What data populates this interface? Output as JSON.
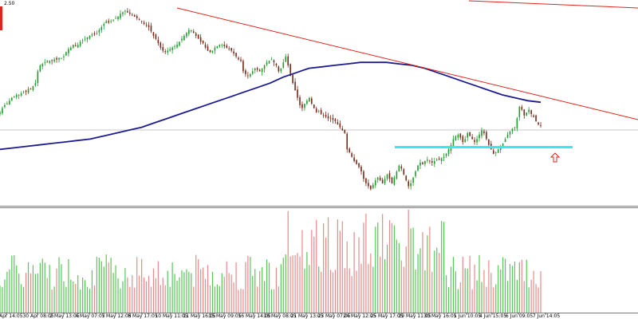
{
  "price_label": "2.50",
  "colors": {
    "bull": "#1f9e2f",
    "bear": "#7a2a1a",
    "ma": "#1c1c8f",
    "trendline": "#e0241c",
    "support": "#38e8f0",
    "arrow": "#e0241c",
    "vol_up": "#56c856",
    "vol_down": "#e88a8a",
    "marker": "#e0241c",
    "grid": "#b8b8b8",
    "separator": "#7a7a7a"
  },
  "x_ticks": [
    "26 Apr 14:05",
    "30 Apr 08:05",
    "2 May 13:05",
    "4 May 07:05",
    "7 May 12:05",
    "8 May 17:05",
    "10 May 11:05",
    "11 May 16:05",
    "15 May 09:05",
    "16 May 14:05",
    "18 May 08:05",
    "21 May 13:05",
    "23 May 07:05",
    "24 May 12:05",
    "25 May 17:05",
    "29 May 11:05",
    "30 May 16:05",
    "1 Jun 10:05",
    "4 Jun 15:05",
    "6 Jun 09:05",
    "7 Jun 14:05"
  ],
  "chart_data": {
    "type": "candlestick",
    "indicators": [
      "moving average",
      "descending trendline",
      "horizontal support line",
      "volume histogram"
    ],
    "closes": [
      0.3,
      0.33,
      0.35,
      0.36,
      0.38,
      0.4,
      0.41,
      0.42,
      0.42,
      0.43,
      0.44,
      0.44,
      0.46,
      0.46,
      0.48,
      0.5,
      0.58,
      0.62,
      0.63,
      0.64,
      0.64,
      0.65,
      0.65,
      0.66,
      0.66,
      0.67,
      0.67,
      0.68,
      0.71,
      0.73,
      0.74,
      0.76,
      0.75,
      0.76,
      0.78,
      0.79,
      0.8,
      0.81,
      0.82,
      0.83,
      0.83,
      0.84,
      0.86,
      0.88,
      0.9,
      0.92,
      0.91,
      0.92,
      0.93,
      0.94,
      0.95,
      0.97,
      0.98,
      0.99,
      0.98,
      0.97,
      0.96,
      0.95,
      0.94,
      0.93,
      0.92,
      0.9,
      0.89,
      0.88,
      0.85,
      0.82,
      0.8,
      0.77,
      0.74,
      0.72,
      0.71,
      0.72,
      0.73,
      0.74,
      0.75,
      0.76,
      0.78,
      0.8,
      0.82,
      0.84,
      0.86,
      0.86,
      0.84,
      0.82,
      0.8,
      0.78,
      0.77,
      0.74,
      0.72,
      0.71,
      0.72,
      0.74,
      0.75,
      0.76,
      0.76,
      0.75,
      0.74,
      0.73,
      0.72,
      0.7,
      0.68,
      0.66,
      0.65,
      0.58,
      0.56,
      0.55,
      0.56,
      0.58,
      0.6,
      0.59,
      0.58,
      0.6,
      0.62,
      0.64,
      0.65,
      0.66,
      0.64,
      0.62,
      0.58,
      0.6,
      0.64,
      0.68,
      0.62,
      0.55,
      0.5,
      0.45,
      0.4,
      0.35,
      0.33,
      0.36,
      0.38,
      0.4,
      0.36,
      0.33,
      0.3,
      0.31,
      0.29,
      0.28,
      0.27,
      0.26,
      0.26,
      0.25,
      0.24,
      0.22,
      0.2,
      0.18,
      0.16,
      0.05,
      0.03,
      0.0,
      -0.03,
      -0.05,
      -0.07,
      -0.1,
      -0.15,
      -0.18,
      -0.2,
      -0.22,
      -0.19,
      -0.16,
      -0.14,
      -0.16,
      -0.18,
      -0.15,
      -0.12,
      -0.15,
      -0.18,
      -0.14,
      -0.1,
      -0.06,
      -0.08,
      -0.12,
      -0.16,
      -0.2,
      -0.18,
      -0.14,
      -0.1,
      -0.06,
      -0.04,
      -0.05,
      -0.03,
      -0.02,
      -0.03,
      -0.04,
      -0.03,
      -0.02,
      -0.02,
      -0.01,
      0.0,
      0.02,
      0.05,
      0.08,
      0.12,
      0.14,
      0.15,
      0.13,
      0.1,
      0.12,
      0.16,
      0.14,
      0.12,
      0.1,
      0.12,
      0.15,
      0.18,
      0.16,
      0.12,
      0.08,
      0.05,
      0.02,
      0.03,
      0.05,
      0.06,
      0.09,
      0.12,
      0.15,
      0.17,
      0.19,
      0.2,
      0.26,
      0.34,
      0.32,
      0.28,
      0.3,
      0.32,
      0.29,
      0.27,
      0.24,
      0.22,
      0.21
    ],
    "ma_values": [
      0.05,
      0.06,
      0.07,
      0.08,
      0.09,
      0.1,
      0.11,
      0.12,
      0.14,
      0.16,
      0.18,
      0.2,
      0.23,
      0.26,
      0.29,
      0.32,
      0.35,
      0.38,
      0.41,
      0.44,
      0.47,
      0.5,
      0.54,
      0.57,
      0.6,
      0.61,
      0.62,
      0.63,
      0.64,
      0.64,
      0.64,
      0.63,
      0.62,
      0.6,
      0.57,
      0.54,
      0.51,
      0.48,
      0.45,
      0.42,
      0.4,
      0.38,
      0.37
    ],
    "ylim": [
      -0.3,
      1.02
    ]
  }
}
